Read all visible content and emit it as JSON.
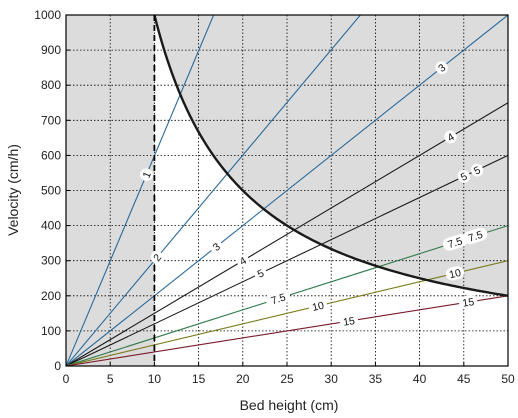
{
  "chart_data": {
    "type": "line",
    "title": "",
    "xlabel": "Bed height (cm)",
    "ylabel": "Velocity (cm/h)",
    "xlim": [
      0,
      50
    ],
    "ylim": [
      0,
      1000
    ],
    "xticks": [
      0,
      5,
      10,
      15,
      20,
      25,
      30,
      35,
      40,
      45,
      50
    ],
    "yticks": [
      0,
      100,
      200,
      300,
      400,
      500,
      600,
      700,
      800,
      900,
      1000
    ],
    "grid": "dotted",
    "colors": {
      "region_fill": "#dcdcdc",
      "frame": "#000000",
      "grid": "#000000",
      "boundary": "#1a1a1a"
    },
    "series": [
      {
        "name": "1",
        "x": [
          0,
          16.7
        ],
        "y": [
          0,
          1000
        ],
        "color": "#2a6a9a",
        "label_at_x": [
          9.1,
          18.3
        ]
      },
      {
        "name": "2",
        "x": [
          0,
          33.3
        ],
        "y": [
          0,
          1000
        ],
        "color": "#2a6a9a",
        "label_at_x": [
          10.3,
          41.1
        ]
      },
      {
        "name": "3",
        "x": [
          0,
          50
        ],
        "y": [
          0,
          1000
        ],
        "color": "#2a6a9a",
        "label_at_x": [
          17.0,
          42.5,
          53.5
        ]
      },
      {
        "name": "4",
        "x": [
          0,
          50
        ],
        "y": [
          0,
          750
        ],
        "color": "#1a1a1a",
        "label_at_x": [
          20.0,
          43.5
        ]
      },
      {
        "name": "5",
        "x": [
          0,
          50
        ],
        "y": [
          0,
          600
        ],
        "color": "#1a1a1a",
        "label_at_x": [
          22.0,
          45.0,
          46.5
        ]
      },
      {
        "name": "7.5",
        "x": [
          0,
          50
        ],
        "y": [
          0,
          400
        ],
        "color": "#2e7a4a",
        "label_at_x": [
          24.0,
          44.0,
          46.3
        ]
      },
      {
        "name": "10",
        "x": [
          0,
          50
        ],
        "y": [
          0,
          300
        ],
        "color": "#7a7a1a",
        "label_at_x": [
          28.5,
          44.0
        ]
      },
      {
        "name": "15",
        "x": [
          0,
          50
        ],
        "y": [
          0,
          200
        ],
        "color": "#7a1a2a",
        "label_at_x": [
          32.0,
          45.5
        ]
      }
    ],
    "boundary": {
      "curve_k": 10000,
      "x_range": [
        10,
        50
      ],
      "y_values": [
        1000,
        200
      ]
    },
    "dashed_vertical_x": 10
  }
}
